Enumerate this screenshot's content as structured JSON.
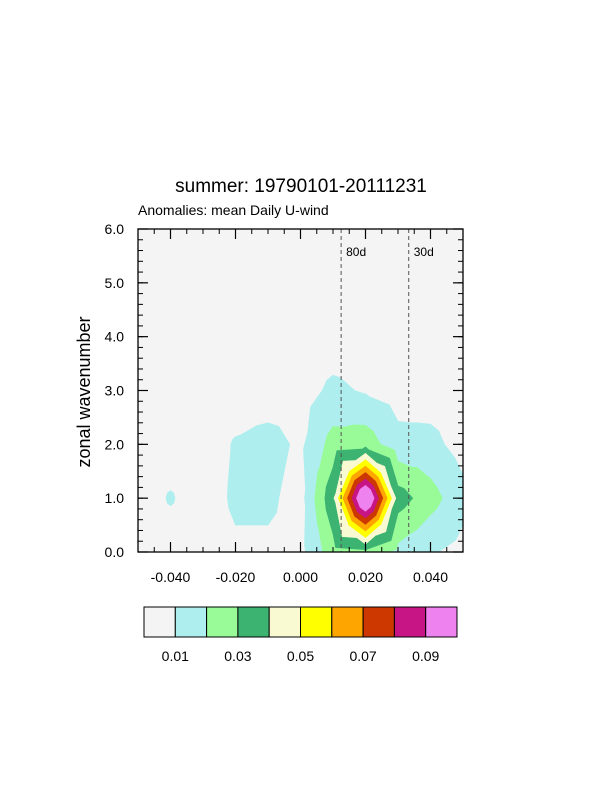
{
  "chart_data": {
    "type": "contour",
    "title": "summer: 19790101-20111231",
    "subtitle": "Anomalies: mean Daily U-wind",
    "xlabel": "",
    "ylabel": "zonal wavenumber",
    "xlim": [
      -0.05,
      0.05
    ],
    "ylim": [
      0,
      6
    ],
    "xticks": [
      -0.04,
      -0.02,
      0.0,
      0.02,
      0.04
    ],
    "xtick_labels": [
      "-0.040",
      "-0.020",
      "0.000",
      "0.020",
      "0.040"
    ],
    "yticks": [
      0,
      1,
      2,
      3,
      4,
      5,
      6
    ],
    "ytick_labels": [
      "0.0",
      "1.0",
      "2.0",
      "3.0",
      "4.0",
      "5.0",
      "6.0"
    ],
    "x_grid": [
      -0.05,
      -0.04,
      -0.03,
      -0.02,
      -0.01,
      0.0,
      0.01,
      0.02,
      0.03,
      0.04,
      0.05
    ],
    "y_grid": [
      0,
      1,
      2,
      3,
      4,
      5,
      6
    ],
    "z": [
      [
        0.004,
        0.004,
        0.004,
        0.008,
        0.008,
        0.007,
        0.026,
        0.028,
        0.017,
        0.011,
        0.007
      ],
      [
        0.004,
        0.011,
        0.004,
        0.012,
        0.012,
        0.006,
        0.038,
        0.11,
        0.035,
        0.024,
        0.013
      ],
      [
        0.004,
        0.004,
        0.004,
        0.011,
        0.014,
        0.008,
        0.024,
        0.026,
        0.013,
        0.013,
        0.006
      ],
      [
        0.003,
        0.003,
        0.003,
        0.004,
        0.004,
        0.006,
        0.012,
        0.009,
        0.006,
        0.005,
        0.004
      ],
      [
        0.003,
        0.003,
        0.003,
        0.003,
        0.003,
        0.004,
        0.005,
        0.005,
        0.004,
        0.004,
        0.003
      ],
      [
        0.003,
        0.003,
        0.003,
        0.003,
        0.003,
        0.003,
        0.004,
        0.004,
        0.003,
        0.003,
        0.003
      ],
      [
        0.003,
        0.003,
        0.003,
        0.003,
        0.003,
        0.003,
        0.003,
        0.003,
        0.003,
        0.003,
        0.003
      ]
    ],
    "contour_levels": [
      0.01,
      0.02,
      0.03,
      0.04,
      0.05,
      0.06,
      0.07,
      0.08,
      0.09
    ],
    "fill_colors": [
      "#f4f4f4",
      "#afeeee",
      "#98fb98",
      "#3cb371",
      "#fafad2",
      "#ffff00",
      "#ffa500",
      "#cd3700",
      "#c71585",
      "#ee82ee"
    ],
    "colorbar_labels": [
      "0.01",
      "0.03",
      "0.05",
      "0.07",
      "0.09"
    ],
    "reference_lines": [
      {
        "x": 0.0125,
        "label": "80d"
      },
      {
        "x": 0.0333,
        "label": "30d"
      }
    ]
  }
}
